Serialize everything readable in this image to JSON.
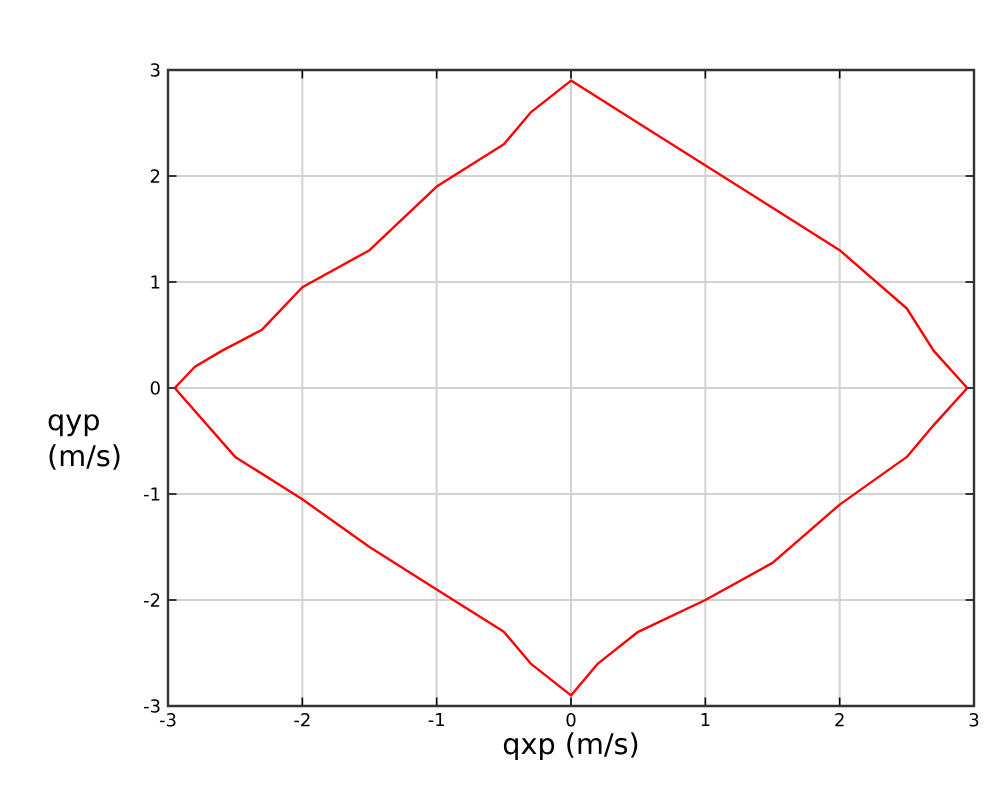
{
  "chart_data": {
    "type": "line",
    "xlabel": "qxp (m/s)",
    "ylabel": "qyp (m/s)",
    "xlim": [
      -3,
      3
    ],
    "ylim": [
      -3,
      3
    ],
    "xticks": [
      -3,
      -2,
      -1,
      0,
      1,
      2,
      3
    ],
    "yticks": [
      -3,
      -2,
      -1,
      0,
      1,
      2,
      3
    ],
    "grid": true,
    "series": [
      {
        "color": "#ff0000",
        "x": [
          -2.95,
          -2.8,
          -2.6,
          -2.3,
          -2,
          -1.5,
          -1,
          -0.5,
          -0.3,
          0,
          0.5,
          1,
          1.5,
          2,
          2.5,
          2.7,
          2.95
        ],
        "values": [
          0,
          0.2,
          0.35,
          0.55,
          0.95,
          1.3,
          1.9,
          2.3,
          2.6,
          2.9,
          2.5,
          2.1,
          1.7,
          1.3,
          0.75,
          0.35,
          0
        ]
      },
      {
        "color": "#ff0000",
        "x": [
          -2.95,
          -2.5,
          -2,
          -1.5,
          -1,
          -0.5,
          -0.3,
          0,
          0.2,
          0.5,
          1,
          1.5,
          2,
          2.5,
          2.7,
          2.95
        ],
        "values": [
          0,
          -0.65,
          -1.05,
          -1.5,
          -1.9,
          -2.3,
          -2.6,
          -2.9,
          -2.6,
          -2.3,
          -2,
          -1.65,
          -1.1,
          -0.65,
          -0.35,
          0
        ]
      }
    ]
  }
}
